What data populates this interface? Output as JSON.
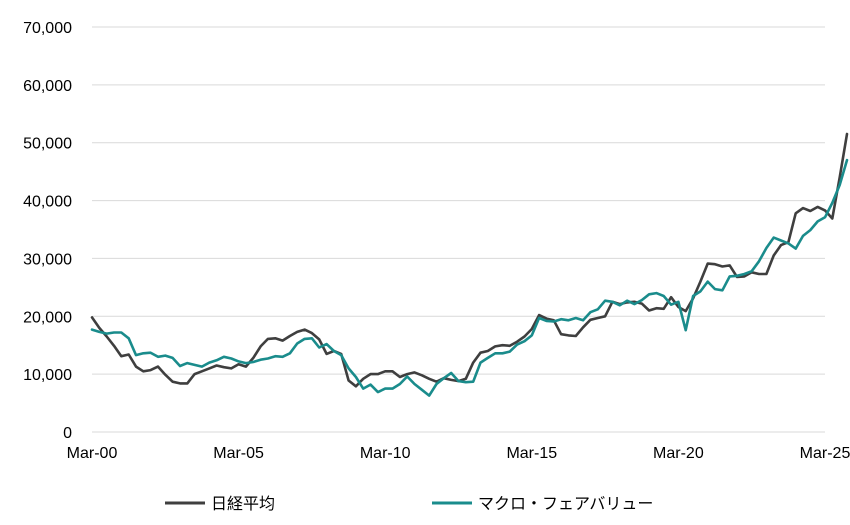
{
  "chart_data": {
    "type": "line",
    "title": "",
    "xlabel": "",
    "ylabel": "",
    "ylim": [
      0,
      70000
    ],
    "y_ticks": [
      0,
      10000,
      20000,
      30000,
      40000,
      50000,
      60000,
      70000
    ],
    "y_tick_labels": [
      "0",
      "10,000",
      "20,000",
      "30,000",
      "40,000",
      "50,000",
      "60,000",
      "70,000"
    ],
    "x_ticks": [
      "2000-03",
      "2005-03",
      "2010-03",
      "2015-03",
      "2020-03",
      "2025-03"
    ],
    "x_tick_labels": [
      "Mar-00",
      "Mar-05",
      "Mar-10",
      "Mar-15",
      "Mar-20",
      "Mar-25"
    ],
    "grid": "horizontal",
    "legend_position": "bottom",
    "series": [
      {
        "name": "日経平均",
        "color": "#3f3f3f",
        "points": [
          [
            "2000-03",
            19800
          ],
          [
            "2000-06",
            18000
          ],
          [
            "2000-09",
            16500
          ],
          [
            "2000-12",
            14900
          ],
          [
            "2001-03",
            13100
          ],
          [
            "2001-06",
            13400
          ],
          [
            "2001-09",
            11300
          ],
          [
            "2001-12",
            10500
          ],
          [
            "2002-03",
            10700
          ],
          [
            "2002-06",
            11300
          ],
          [
            "2002-09",
            9900
          ],
          [
            "2002-12",
            8700
          ],
          [
            "2003-03",
            8400
          ],
          [
            "2003-06",
            8400
          ],
          [
            "2003-09",
            10000
          ],
          [
            "2003-12",
            10500
          ],
          [
            "2004-03",
            11000
          ],
          [
            "2004-06",
            11500
          ],
          [
            "2004-09",
            11200
          ],
          [
            "2004-12",
            11000
          ],
          [
            "2005-03",
            11700
          ],
          [
            "2005-06",
            11300
          ],
          [
            "2005-09",
            12800
          ],
          [
            "2005-12",
            14800
          ],
          [
            "2006-03",
            16100
          ],
          [
            "2006-06",
            16200
          ],
          [
            "2006-09",
            15800
          ],
          [
            "2006-12",
            16600
          ],
          [
            "2007-03",
            17300
          ],
          [
            "2007-06",
            17700
          ],
          [
            "2007-09",
            17100
          ],
          [
            "2007-12",
            16000
          ],
          [
            "2008-03",
            13500
          ],
          [
            "2008-06",
            14000
          ],
          [
            "2008-09",
            13500
          ],
          [
            "2008-12",
            8900
          ],
          [
            "2009-03",
            7900
          ],
          [
            "2009-06",
            9200
          ],
          [
            "2009-09",
            10000
          ],
          [
            "2009-12",
            10000
          ],
          [
            "2010-03",
            10500
          ],
          [
            "2010-06",
            10500
          ],
          [
            "2010-09",
            9500
          ],
          [
            "2010-12",
            10000
          ],
          [
            "2011-03",
            10300
          ],
          [
            "2011-06",
            9800
          ],
          [
            "2011-09",
            9200
          ],
          [
            "2011-12",
            8700
          ],
          [
            "2012-03",
            9300
          ],
          [
            "2012-06",
            9000
          ],
          [
            "2012-09",
            8800
          ],
          [
            "2012-12",
            9200
          ],
          [
            "2013-03",
            12000
          ],
          [
            "2013-06",
            13700
          ],
          [
            "2013-09",
            14000
          ],
          [
            "2013-12",
            14800
          ],
          [
            "2014-03",
            15000
          ],
          [
            "2014-06",
            14900
          ],
          [
            "2014-09",
            15600
          ],
          [
            "2014-12",
            16500
          ],
          [
            "2015-03",
            17800
          ],
          [
            "2015-06",
            20200
          ],
          [
            "2015-09",
            19600
          ],
          [
            "2015-12",
            19300
          ],
          [
            "2016-03",
            16900
          ],
          [
            "2016-06",
            16700
          ],
          [
            "2016-09",
            16600
          ],
          [
            "2016-12",
            18100
          ],
          [
            "2017-03",
            19400
          ],
          [
            "2017-06",
            19700
          ],
          [
            "2017-09",
            20000
          ],
          [
            "2017-12",
            22500
          ],
          [
            "2018-03",
            22100
          ],
          [
            "2018-06",
            22400
          ],
          [
            "2018-09",
            22500
          ],
          [
            "2018-12",
            22200
          ],
          [
            "2019-03",
            21000
          ],
          [
            "2019-06",
            21400
          ],
          [
            "2019-09",
            21300
          ],
          [
            "2019-12",
            23300
          ],
          [
            "2020-03",
            21600
          ],
          [
            "2020-06",
            20900
          ],
          [
            "2020-09",
            23100
          ],
          [
            "2020-12",
            26000
          ],
          [
            "2021-03",
            29100
          ],
          [
            "2021-06",
            29000
          ],
          [
            "2021-09",
            28600
          ],
          [
            "2021-12",
            28800
          ],
          [
            "2022-03",
            26800
          ],
          [
            "2022-06",
            26900
          ],
          [
            "2022-09",
            27600
          ],
          [
            "2022-12",
            27300
          ],
          [
            "2023-03",
            27300
          ],
          [
            "2023-06",
            30500
          ],
          [
            "2023-09",
            32300
          ],
          [
            "2023-12",
            32800
          ],
          [
            "2024-03",
            37800
          ],
          [
            "2024-06",
            38700
          ],
          [
            "2024-09",
            38200
          ],
          [
            "2024-12",
            38900
          ],
          [
            "2025-03",
            38300
          ],
          [
            "2025-06",
            36900
          ],
          [
            "2025-09",
            44000
          ],
          [
            "2025-12",
            51500
          ]
        ]
      },
      {
        "name": "マクロ・フェアバリュー",
        "color": "#1a8c8c",
        "points": [
          [
            "2000-03",
            17700
          ],
          [
            "2000-06",
            17300
          ],
          [
            "2000-09",
            17000
          ],
          [
            "2000-12",
            17200
          ],
          [
            "2001-03",
            17200
          ],
          [
            "2001-06",
            16200
          ],
          [
            "2001-09",
            13300
          ],
          [
            "2001-12",
            13600
          ],
          [
            "2002-03",
            13700
          ],
          [
            "2002-06",
            13000
          ],
          [
            "2002-09",
            13200
          ],
          [
            "2002-12",
            12800
          ],
          [
            "2003-03",
            11400
          ],
          [
            "2003-06",
            11900
          ],
          [
            "2003-09",
            11600
          ],
          [
            "2003-12",
            11300
          ],
          [
            "2004-03",
            12000
          ],
          [
            "2004-06",
            12400
          ],
          [
            "2004-09",
            13000
          ],
          [
            "2004-12",
            12700
          ],
          [
            "2005-03",
            12200
          ],
          [
            "2005-06",
            11900
          ],
          [
            "2005-09",
            12100
          ],
          [
            "2005-12",
            12500
          ],
          [
            "2006-03",
            12700
          ],
          [
            "2006-06",
            13100
          ],
          [
            "2006-09",
            13000
          ],
          [
            "2006-12",
            13600
          ],
          [
            "2007-03",
            15300
          ],
          [
            "2007-06",
            16100
          ],
          [
            "2007-09",
            16200
          ],
          [
            "2007-12",
            14600
          ],
          [
            "2008-03",
            15200
          ],
          [
            "2008-06",
            14000
          ],
          [
            "2008-09",
            13300
          ],
          [
            "2008-12",
            11000
          ],
          [
            "2009-03",
            9500
          ],
          [
            "2009-06",
            7500
          ],
          [
            "2009-09",
            8200
          ],
          [
            "2009-12",
            6900
          ],
          [
            "2010-03",
            7500
          ],
          [
            "2010-06",
            7500
          ],
          [
            "2010-09",
            8300
          ],
          [
            "2010-12",
            9600
          ],
          [
            "2011-03",
            8300
          ],
          [
            "2011-06",
            7300
          ],
          [
            "2011-09",
            6300
          ],
          [
            "2011-12",
            8300
          ],
          [
            "2012-03",
            9300
          ],
          [
            "2012-06",
            10200
          ],
          [
            "2012-09",
            8800
          ],
          [
            "2012-12",
            8600
          ],
          [
            "2013-03",
            8700
          ],
          [
            "2013-06",
            12000
          ],
          [
            "2013-09",
            12800
          ],
          [
            "2013-12",
            13600
          ],
          [
            "2014-03",
            13600
          ],
          [
            "2014-06",
            13900
          ],
          [
            "2014-09",
            15100
          ],
          [
            "2014-12",
            15700
          ],
          [
            "2015-03",
            16700
          ],
          [
            "2015-06",
            19700
          ],
          [
            "2015-09",
            19200
          ],
          [
            "2015-12",
            19100
          ],
          [
            "2016-03",
            19500
          ],
          [
            "2016-06",
            19300
          ],
          [
            "2016-09",
            19700
          ],
          [
            "2016-12",
            19300
          ],
          [
            "2017-03",
            20700
          ],
          [
            "2017-06",
            21200
          ],
          [
            "2017-09",
            22700
          ],
          [
            "2017-12",
            22500
          ],
          [
            "2018-03",
            21900
          ],
          [
            "2018-06",
            22700
          ],
          [
            "2018-09",
            22100
          ],
          [
            "2018-12",
            22800
          ],
          [
            "2019-03",
            23800
          ],
          [
            "2019-06",
            24000
          ],
          [
            "2019-09",
            23500
          ],
          [
            "2019-12",
            22000
          ],
          [
            "2020-03",
            22500
          ],
          [
            "2020-06",
            17600
          ],
          [
            "2020-09",
            23500
          ],
          [
            "2020-12",
            24300
          ],
          [
            "2021-03",
            26000
          ],
          [
            "2021-06",
            24700
          ],
          [
            "2021-09",
            24500
          ],
          [
            "2021-12",
            26900
          ],
          [
            "2022-03",
            27000
          ],
          [
            "2022-06",
            27300
          ],
          [
            "2022-09",
            27800
          ],
          [
            "2022-12",
            29500
          ],
          [
            "2023-03",
            31800
          ],
          [
            "2023-06",
            33600
          ],
          [
            "2023-09",
            33100
          ],
          [
            "2023-12",
            32600
          ],
          [
            "2024-03",
            31700
          ],
          [
            "2024-06",
            33900
          ],
          [
            "2024-09",
            34900
          ],
          [
            "2024-12",
            36400
          ],
          [
            "2025-03",
            37100
          ],
          [
            "2025-06",
            39600
          ],
          [
            "2025-09",
            42700
          ],
          [
            "2025-12",
            47000
          ]
        ]
      }
    ]
  }
}
